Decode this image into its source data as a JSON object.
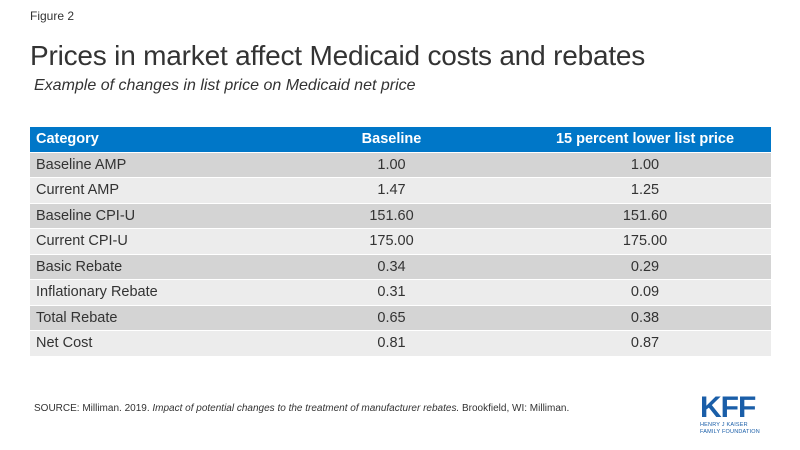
{
  "figure_label": "Figure 2",
  "title": "Prices in market affect Medicaid costs and rebates",
  "subtitle": "Example of changes in list price on Medicaid net price",
  "table": {
    "headers": [
      "Category",
      "Baseline",
      "15 percent lower list price"
    ],
    "rows": [
      [
        "Baseline AMP",
        "1.00",
        "1.00"
      ],
      [
        "Current AMP",
        "1.47",
        "1.25"
      ],
      [
        "Baseline CPI-U",
        "151.60",
        "151.60"
      ],
      [
        "Current CPI-U",
        "175.00",
        "175.00"
      ],
      [
        "Basic Rebate",
        "0.34",
        "0.29"
      ],
      [
        "Inflationary Rebate",
        "0.31",
        "0.09"
      ],
      [
        "Total Rebate",
        "0.65",
        "0.38"
      ],
      [
        "Net Cost",
        "0.81",
        "0.87"
      ]
    ]
  },
  "source": {
    "prefix": "SOURCE: Milliman. 2019. ",
    "title": "Impact of potential changes to the treatment of manufacturer rebates.",
    "suffix": " Brookfield, WI: Milliman."
  },
  "logo": {
    "mark": "KFF",
    "line1": "HENRY J KAISER",
    "line2": "FAMILY FOUNDATION"
  },
  "colors": {
    "header_bg": "#0077c8",
    "row_dark": "#d4d4d4",
    "row_light": "#ececec",
    "logo": "#1a5ea8"
  }
}
